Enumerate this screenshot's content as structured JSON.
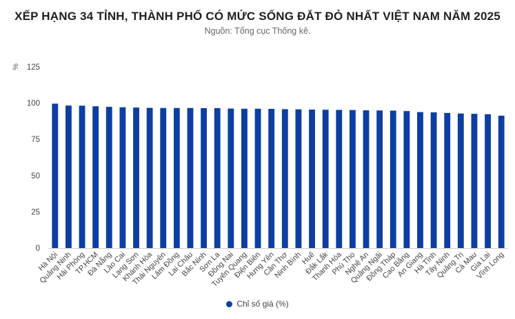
{
  "header": {
    "title": "XẾP HẠNG 34 TỈNH, THÀNH PHỐ CÓ MỨC SỐNG ĐẮT ĐỎ NHẤT VIỆT NAM NĂM 2025",
    "subtitle": "Nguồn: Tổng cục Thống kê."
  },
  "chart_data": {
    "type": "bar",
    "title": "XẾP HẠNG 34 TỈNH, THÀNH PHỐ CÓ MỨC SỐNG ĐẮT ĐỎ NHẤT VIỆT NAM NĂM 2025",
    "subtitle": "Nguồn: Tổng cục Thống kê.",
    "xlabel": "",
    "ylabel": "%",
    "ylim": [
      0,
      125
    ],
    "yticks": [
      0,
      25,
      50,
      75,
      100,
      125
    ],
    "grid": false,
    "legend": "bottom",
    "categories": [
      "Hà Nội",
      "Quảng Ninh",
      "Hải Phòng",
      "TP.HCM",
      "Đà Nẵng",
      "Lào Cai",
      "Lạng Sơn",
      "Khánh Hòa",
      "Thái Nguyên",
      "Lâm Đồng",
      "Lai Châu",
      "Bắc Ninh",
      "Sơn La",
      "Đồng Nai",
      "Tuyên Quang",
      "Điện Biên",
      "Hưng Yên",
      "Cần Thơ",
      "Ninh Bình",
      "Huế",
      "Đắk Lắk",
      "Thanh Hóa",
      "Phú Thọ",
      "Nghệ An",
      "Quảng Ngãi",
      "Đồng Tháp",
      "Cao Bằng",
      "An Giang",
      "Hà Tĩnh",
      "Tây Ninh",
      "Quảng Trị",
      "Cà Mau",
      "Gia Lai",
      "Vĩnh Long"
    ],
    "series": [
      {
        "name": "Chỉ số giá (%)",
        "color": "#0d3ea1",
        "values": [
          99.6,
          98.3,
          98.2,
          97.8,
          97.4,
          97.1,
          96.9,
          96.7,
          96.6,
          96.6,
          96.6,
          96.5,
          96.5,
          96.2,
          96.1,
          96.1,
          96.0,
          95.8,
          95.7,
          95.5,
          95.4,
          95.3,
          95.2,
          95.0,
          94.9,
          94.8,
          94.5,
          93.8,
          93.6,
          93.2,
          92.8,
          92.6,
          92.3,
          91.3
        ]
      }
    ]
  }
}
